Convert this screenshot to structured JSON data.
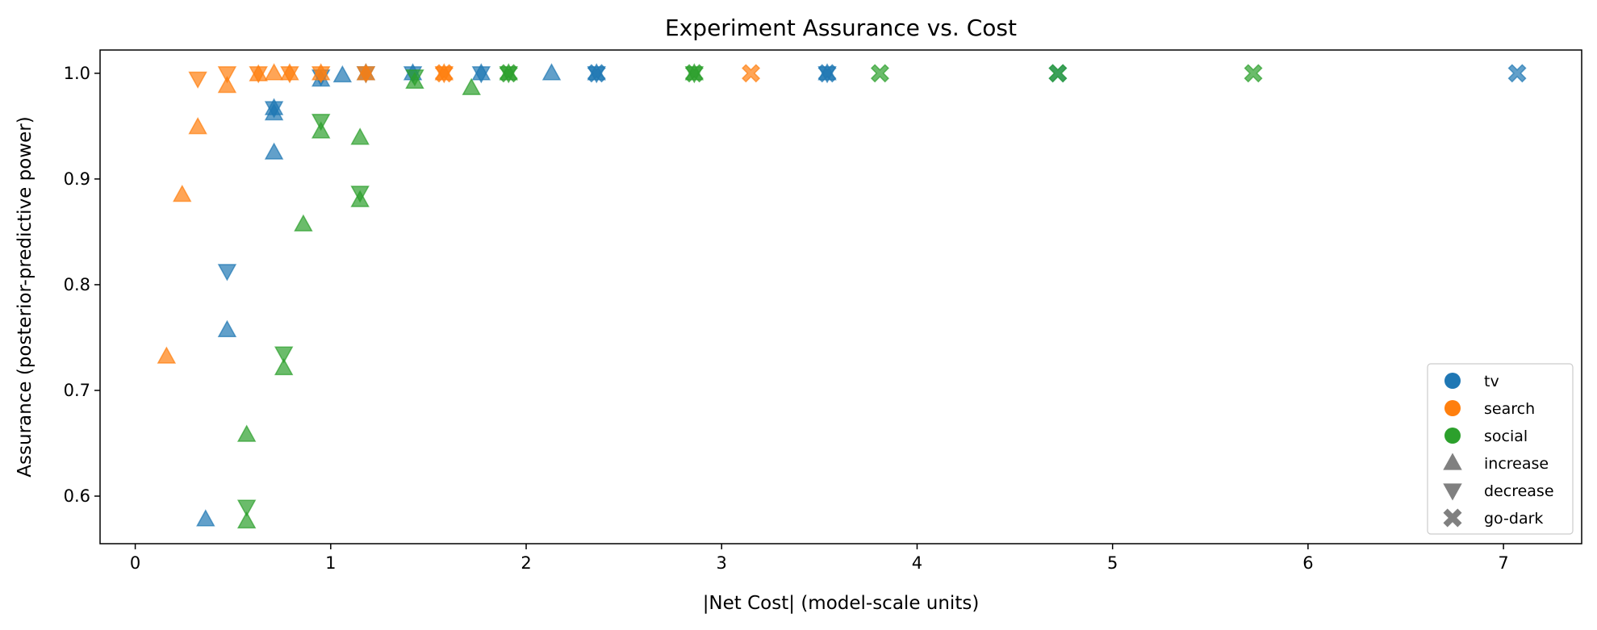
{
  "chart_data": {
    "type": "scatter",
    "title": "Experiment Assurance vs. Cost",
    "xlabel": "|Net Cost| (model-scale units)",
    "ylabel": "Assurance (posterior-predictive power)",
    "xlim": [
      -0.18,
      7.4
    ],
    "ylim": [
      0.555,
      1.022
    ],
    "xticks": [
      0,
      1,
      2,
      3,
      4,
      5,
      6,
      7
    ],
    "yticks": [
      0.6,
      0.7,
      0.8,
      0.9,
      1.0
    ],
    "ytick_labels": [
      "0.6",
      "0.7",
      "0.8",
      "0.9",
      "1.0"
    ],
    "grid": false,
    "legend_position": "lower-right",
    "legend": {
      "channels": [
        {
          "label": "tv",
          "color": "#1f77b4"
        },
        {
          "label": "search",
          "color": "#ff7f0e"
        },
        {
          "label": "social",
          "color": "#2ca02c"
        }
      ],
      "markers": [
        {
          "label": "increase",
          "shape": "triangle-up",
          "color": "#808080"
        },
        {
          "label": "decrease",
          "shape": "triangle-down",
          "color": "#808080"
        },
        {
          "label": "go-dark",
          "shape": "x",
          "color": "#808080"
        }
      ]
    },
    "series": [
      {
        "channel": "tv",
        "type": "increase",
        "x": [
          0.36,
          0.47,
          0.71,
          0.71,
          0.71,
          0.95,
          1.06,
          1.18,
          1.42,
          1.77,
          2.13,
          2.36,
          3.54
        ],
        "y": [
          0.578,
          0.757,
          0.925,
          0.962,
          0.967,
          0.994,
          0.998,
          1.0,
          1.0,
          1.0,
          1.0,
          1.0,
          1.0
        ]
      },
      {
        "channel": "tv",
        "type": "decrease",
        "x": [
          0.47,
          0.71,
          0.95,
          1.18,
          1.42,
          1.77,
          2.36,
          3.54
        ],
        "y": [
          0.813,
          0.967,
          0.997,
          1.0,
          1.0,
          1.0,
          1.0,
          1.0
        ]
      },
      {
        "channel": "tv",
        "type": "go-dark",
        "x": [
          2.36,
          3.54,
          4.72,
          7.07
        ],
        "y": [
          1.0,
          1.0,
          1.0,
          1.0
        ]
      },
      {
        "channel": "search",
        "type": "increase",
        "x": [
          0.16,
          0.24,
          0.32,
          0.47,
          0.63,
          0.71,
          0.79,
          0.95,
          1.18,
          1.58
        ],
        "y": [
          0.732,
          0.885,
          0.949,
          0.988,
          0.999,
          1.0,
          1.0,
          1.0,
          1.0,
          1.0
        ]
      },
      {
        "channel": "search",
        "type": "decrease",
        "x": [
          0.32,
          0.47,
          0.63,
          0.79,
          0.95,
          1.18,
          1.58
        ],
        "y": [
          0.995,
          1.0,
          1.0,
          1.0,
          1.0,
          1.0,
          1.0
        ]
      },
      {
        "channel": "search",
        "type": "go-dark",
        "x": [
          1.58,
          3.15
        ],
        "y": [
          1.0,
          1.0
        ]
      },
      {
        "channel": "social",
        "type": "increase",
        "x": [
          0.57,
          0.57,
          0.76,
          0.86,
          0.95,
          1.15,
          1.15,
          1.43,
          1.72,
          1.91,
          2.86
        ],
        "y": [
          0.576,
          0.658,
          0.721,
          0.857,
          0.945,
          0.939,
          0.88,
          0.992,
          0.986,
          1.0,
          1.0
        ]
      },
      {
        "channel": "social",
        "type": "decrease",
        "x": [
          0.57,
          0.76,
          0.95,
          1.15,
          1.43,
          1.91,
          2.86
        ],
        "y": [
          0.59,
          0.735,
          0.955,
          0.887,
          0.997,
          1.0,
          1.0
        ]
      },
      {
        "channel": "social",
        "type": "go-dark",
        "x": [
          1.91,
          2.86,
          3.81,
          4.72,
          5.72
        ],
        "y": [
          1.0,
          1.0,
          1.0,
          1.0,
          1.0
        ]
      }
    ]
  }
}
